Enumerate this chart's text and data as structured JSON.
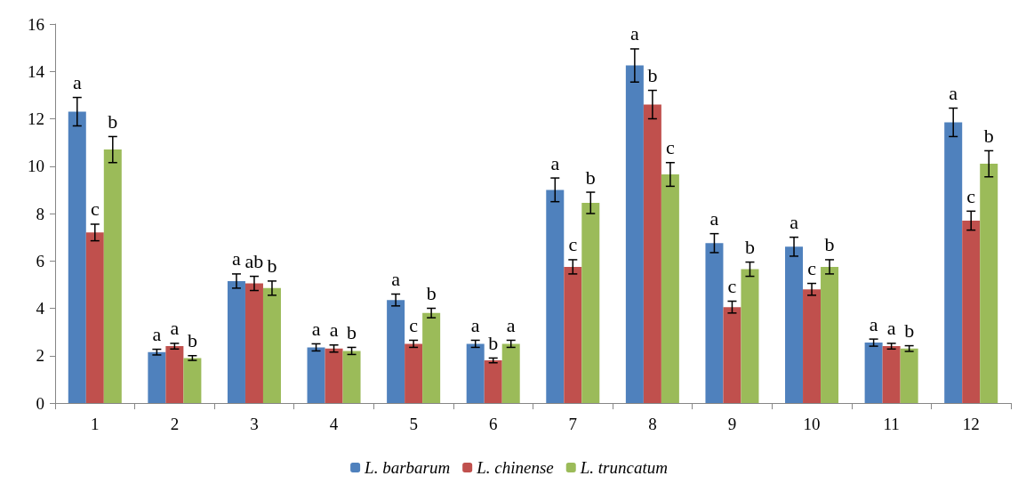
{
  "chart_data": {
    "type": "bar",
    "categories": [
      "1",
      "2",
      "3",
      "4",
      "5",
      "6",
      "7",
      "8",
      "9",
      "10",
      "11",
      "12"
    ],
    "series": [
      {
        "name": "L. barbarum",
        "color": "#4f81bd",
        "values": [
          12.3,
          2.15,
          5.15,
          2.35,
          4.35,
          2.5,
          9.0,
          14.25,
          6.75,
          6.6,
          2.55,
          11.85
        ],
        "errors": [
          0.6,
          0.12,
          0.3,
          0.15,
          0.25,
          0.15,
          0.5,
          0.7,
          0.4,
          0.4,
          0.15,
          0.6
        ],
        "value_labels": [
          "a",
          "a",
          "a",
          "a",
          "a",
          "a",
          "a",
          "a",
          "a",
          "a",
          "a",
          "a"
        ]
      },
      {
        "name": "L. chinense",
        "color": "#c0504d",
        "values": [
          7.2,
          2.4,
          5.05,
          2.3,
          2.5,
          1.8,
          5.75,
          12.6,
          4.05,
          4.8,
          2.4,
          7.7
        ],
        "errors": [
          0.35,
          0.12,
          0.3,
          0.15,
          0.15,
          0.1,
          0.3,
          0.6,
          0.25,
          0.25,
          0.12,
          0.4
        ],
        "value_labels": [
          "c",
          "a",
          "ab",
          "a",
          "c",
          "b",
          "c",
          "b",
          "c",
          "c",
          "a",
          "c"
        ]
      },
      {
        "name": "L. truncatum",
        "color": "#9bbb59",
        "values": [
          10.7,
          1.9,
          4.85,
          2.2,
          3.8,
          2.5,
          8.45,
          9.65,
          5.65,
          5.75,
          2.3,
          10.1
        ],
        "errors": [
          0.55,
          0.1,
          0.3,
          0.15,
          0.2,
          0.15,
          0.45,
          0.5,
          0.3,
          0.3,
          0.12,
          0.55
        ],
        "value_labels": [
          "b",
          "b",
          "b",
          "b",
          "b",
          "a",
          "b",
          "c",
          "b",
          "b",
          "b",
          "b"
        ]
      }
    ],
    "ylim": [
      0,
      16
    ],
    "yticks": [
      0,
      2,
      4,
      6,
      8,
      10,
      12,
      14,
      16
    ],
    "grid": false,
    "legend": "bottom"
  }
}
